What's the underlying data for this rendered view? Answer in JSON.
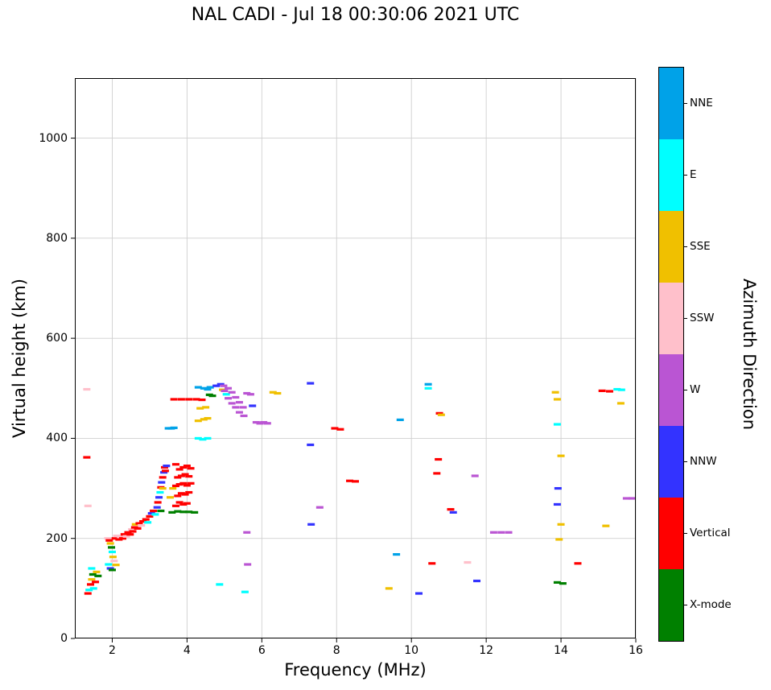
{
  "title": "NAL CADI - Jul 18 00:30:06 2021 UTC",
  "chart_data": {
    "type": "scatter",
    "title": "NAL CADI - Jul 18 00:30:06 2021 UTC",
    "xlabel": "Frequency (MHz)",
    "ylabel": "Virtual height (km)",
    "legend_title": "Azimuth Direction",
    "legend_position": "right-colorbar",
    "xlim": [
      1,
      16
    ],
    "ylim": [
      0,
      1120
    ],
    "x_ticks": [
      2,
      4,
      6,
      8,
      10,
      12,
      14,
      16
    ],
    "y_ticks": [
      0,
      200,
      400,
      600,
      800,
      1000
    ],
    "grid": true,
    "grid_color": "#cfcfcf",
    "marker": "horizontal-dash",
    "categories": [
      {
        "code": "NNE",
        "label": "NNE",
        "color": "#00A2E8"
      },
      {
        "code": "E",
        "label": "E",
        "color": "#00FFFF"
      },
      {
        "code": "SSE",
        "label": "SSE",
        "color": "#F0C000"
      },
      {
        "code": "SSW",
        "label": "SSW",
        "color": "#FFC0CB"
      },
      {
        "code": "W",
        "label": "W",
        "color": "#BA55D3"
      },
      {
        "code": "NNW",
        "label": "NNW",
        "color": "#3333FF"
      },
      {
        "code": "V",
        "label": "Vertical",
        "color": "#FF0000"
      },
      {
        "code": "X",
        "label": "X-mode",
        "color": "#008000"
      }
    ],
    "points": [
      [
        1.32,
        498,
        "SSW"
      ],
      [
        1.32,
        362,
        "V"
      ],
      [
        1.35,
        265,
        "SSW"
      ],
      [
        1.35,
        90,
        "V"
      ],
      [
        1.38,
        97,
        "E"
      ],
      [
        1.42,
        108,
        "V"
      ],
      [
        1.45,
        118,
        "SSE"
      ],
      [
        1.48,
        128,
        "X"
      ],
      [
        1.5,
        100,
        "E"
      ],
      [
        1.55,
        113,
        "V"
      ],
      [
        1.58,
        133,
        "SSE"
      ],
      [
        1.45,
        140,
        "E"
      ],
      [
        1.62,
        125,
        "X"
      ],
      [
        1.88,
        200,
        "SSW"
      ],
      [
        1.92,
        196,
        "V"
      ],
      [
        1.95,
        190,
        "SSE"
      ],
      [
        1.98,
        182,
        "X"
      ],
      [
        2.0,
        173,
        "E"
      ],
      [
        2.02,
        163,
        "SSE"
      ],
      [
        2.05,
        155,
        "SSW"
      ],
      [
        1.9,
        148,
        "E"
      ],
      [
        1.95,
        140,
        "NNW"
      ],
      [
        2.0,
        137,
        "X"
      ],
      [
        2.08,
        200,
        "V"
      ],
      [
        2.12,
        205,
        "SSW"
      ],
      [
        2.1,
        147,
        "SSE"
      ],
      [
        2.18,
        198,
        "V"
      ],
      [
        2.22,
        203,
        "SSW"
      ],
      [
        2.28,
        200,
        "V"
      ],
      [
        2.32,
        208,
        "V"
      ],
      [
        2.38,
        204,
        "SSW"
      ],
      [
        2.42,
        212,
        "V"
      ],
      [
        2.48,
        208,
        "V"
      ],
      [
        2.52,
        218,
        "SSW"
      ],
      [
        2.55,
        214,
        "V"
      ],
      [
        2.6,
        222,
        "V"
      ],
      [
        2.62,
        228,
        "SSE"
      ],
      [
        2.68,
        220,
        "V"
      ],
      [
        2.72,
        230,
        "V"
      ],
      [
        2.78,
        226,
        "SSW"
      ],
      [
        2.82,
        234,
        "V"
      ],
      [
        2.9,
        238,
        "V"
      ],
      [
        2.95,
        232,
        "E"
      ],
      [
        3.0,
        244,
        "V"
      ],
      [
        3.05,
        250,
        "NNW"
      ],
      [
        3.1,
        255,
        "V"
      ],
      [
        3.15,
        248,
        "E"
      ],
      [
        3.2,
        262,
        "NNW"
      ],
      [
        3.22,
        272,
        "V"
      ],
      [
        3.25,
        282,
        "NNW"
      ],
      [
        3.28,
        292,
        "E"
      ],
      [
        3.3,
        302,
        "V"
      ],
      [
        3.32,
        312,
        "NNW"
      ],
      [
        3.35,
        322,
        "V"
      ],
      [
        3.38,
        332,
        "NNW"
      ],
      [
        3.4,
        342,
        "V"
      ],
      [
        3.42,
        335,
        "V"
      ],
      [
        3.45,
        345,
        "NNW"
      ],
      [
        3.35,
        300,
        "SSE"
      ],
      [
        3.3,
        255,
        "X"
      ],
      [
        3.5,
        420,
        "NNE"
      ],
      [
        3.58,
        420,
        "NNE"
      ],
      [
        3.65,
        421,
        "NNE"
      ],
      [
        3.6,
        252,
        "X"
      ],
      [
        3.75,
        254,
        "X"
      ],
      [
        3.9,
        253,
        "X"
      ],
      [
        4.05,
        253,
        "X"
      ],
      [
        4.2,
        252,
        "X"
      ],
      [
        3.7,
        265,
        "V"
      ],
      [
        3.8,
        272,
        "V"
      ],
      [
        3.9,
        268,
        "V"
      ],
      [
        4.0,
        270,
        "V"
      ],
      [
        3.75,
        285,
        "V"
      ],
      [
        3.85,
        290,
        "V"
      ],
      [
        3.95,
        288,
        "V"
      ],
      [
        4.05,
        292,
        "V"
      ],
      [
        3.7,
        305,
        "V"
      ],
      [
        3.8,
        308,
        "V"
      ],
      [
        3.9,
        310,
        "V"
      ],
      [
        4.0,
        306,
        "V"
      ],
      [
        4.1,
        310,
        "V"
      ],
      [
        3.75,
        322,
        "V"
      ],
      [
        3.85,
        325,
        "V"
      ],
      [
        3.95,
        328,
        "V"
      ],
      [
        4.05,
        324,
        "V"
      ],
      [
        3.8,
        338,
        "V"
      ],
      [
        3.9,
        342,
        "V"
      ],
      [
        4.0,
        345,
        "V"
      ],
      [
        4.1,
        340,
        "V"
      ],
      [
        3.7,
        348,
        "V"
      ],
      [
        3.62,
        300,
        "SSE"
      ],
      [
        3.55,
        282,
        "SSE"
      ],
      [
        3.65,
        478,
        "V"
      ],
      [
        3.85,
        478,
        "V"
      ],
      [
        4.05,
        478,
        "V"
      ],
      [
        4.25,
        478,
        "V"
      ],
      [
        4.4,
        477,
        "V"
      ],
      [
        4.3,
        400,
        "E"
      ],
      [
        4.42,
        398,
        "E"
      ],
      [
        4.55,
        400,
        "E"
      ],
      [
        4.3,
        435,
        "SSE"
      ],
      [
        4.45,
        438,
        "SSE"
      ],
      [
        4.55,
        440,
        "SSE"
      ],
      [
        4.35,
        460,
        "SSE"
      ],
      [
        4.5,
        462,
        "SSE"
      ],
      [
        4.3,
        502,
        "NNE"
      ],
      [
        4.45,
        500,
        "NNE"
      ],
      [
        4.55,
        498,
        "NNE"
      ],
      [
        4.62,
        502,
        "NNE"
      ],
      [
        4.6,
        487,
        "X"
      ],
      [
        4.68,
        485,
        "X"
      ],
      [
        4.78,
        505,
        "NNW"
      ],
      [
        4.9,
        508,
        "NNW"
      ],
      [
        4.95,
        497,
        "SSE"
      ],
      [
        4.98,
        505,
        "W"
      ],
      [
        5.0,
        495,
        "W"
      ],
      [
        5.05,
        488,
        "E"
      ],
      [
        5.1,
        500,
        "W"
      ],
      [
        5.1,
        480,
        "W"
      ],
      [
        5.2,
        492,
        "W"
      ],
      [
        5.2,
        470,
        "W"
      ],
      [
        5.3,
        482,
        "W"
      ],
      [
        5.3,
        462,
        "W"
      ],
      [
        5.4,
        472,
        "W"
      ],
      [
        5.4,
        452,
        "W"
      ],
      [
        5.5,
        462,
        "W"
      ],
      [
        5.52,
        445,
        "W"
      ],
      [
        5.6,
        490,
        "W"
      ],
      [
        5.7,
        488,
        "W"
      ],
      [
        5.75,
        465,
        "NNW"
      ],
      [
        5.85,
        432,
        "W"
      ],
      [
        5.95,
        430,
        "W"
      ],
      [
        6.05,
        432,
        "W"
      ],
      [
        6.15,
        430,
        "W"
      ],
      [
        6.3,
        492,
        "SSE"
      ],
      [
        6.42,
        490,
        "SSE"
      ],
      [
        4.87,
        108,
        "E"
      ],
      [
        5.55,
        93,
        "E"
      ],
      [
        5.6,
        212,
        "W"
      ],
      [
        5.62,
        148,
        "W"
      ],
      [
        7.3,
        510,
        "NNW"
      ],
      [
        7.3,
        387,
        "NNW"
      ],
      [
        7.32,
        228,
        "NNW"
      ],
      [
        7.55,
        262,
        "W"
      ],
      [
        7.95,
        420,
        "V"
      ],
      [
        8.1,
        418,
        "V"
      ],
      [
        8.35,
        315,
        "V"
      ],
      [
        8.5,
        314,
        "V"
      ],
      [
        9.4,
        100,
        "SSE"
      ],
      [
        9.6,
        168,
        "NNE"
      ],
      [
        9.7,
        437,
        "NNE"
      ],
      [
        10.2,
        90,
        "NNW"
      ],
      [
        10.45,
        508,
        "NNE"
      ],
      [
        10.45,
        500,
        "E"
      ],
      [
        10.55,
        150,
        "V"
      ],
      [
        10.75,
        450,
        "V"
      ],
      [
        10.8,
        447,
        "SSE"
      ],
      [
        10.72,
        358,
        "V"
      ],
      [
        10.68,
        330,
        "V"
      ],
      [
        11.05,
        258,
        "V"
      ],
      [
        11.12,
        252,
        "NNW"
      ],
      [
        11.5,
        152,
        "SSW"
      ],
      [
        11.7,
        325,
        "W"
      ],
      [
        11.75,
        115,
        "NNW"
      ],
      [
        12.2,
        212,
        "W"
      ],
      [
        12.4,
        212,
        "W"
      ],
      [
        12.6,
        212,
        "W"
      ],
      [
        13.85,
        492,
        "SSE"
      ],
      [
        13.9,
        478,
        "SSE"
      ],
      [
        13.9,
        428,
        "E"
      ],
      [
        13.92,
        300,
        "NNW"
      ],
      [
        13.9,
        268,
        "NNW"
      ],
      [
        14.0,
        365,
        "SSE"
      ],
      [
        14.0,
        228,
        "SSE"
      ],
      [
        13.95,
        198,
        "SSE"
      ],
      [
        13.9,
        112,
        "X"
      ],
      [
        14.05,
        110,
        "X"
      ],
      [
        14.45,
        150,
        "V"
      ],
      [
        15.1,
        495,
        "V"
      ],
      [
        15.3,
        494,
        "V"
      ],
      [
        15.5,
        498,
        "E"
      ],
      [
        15.62,
        497,
        "E"
      ],
      [
        15.6,
        470,
        "SSE"
      ],
      [
        15.2,
        225,
        "SSE"
      ],
      [
        15.75,
        280,
        "W"
      ],
      [
        15.9,
        280,
        "W"
      ]
    ]
  }
}
